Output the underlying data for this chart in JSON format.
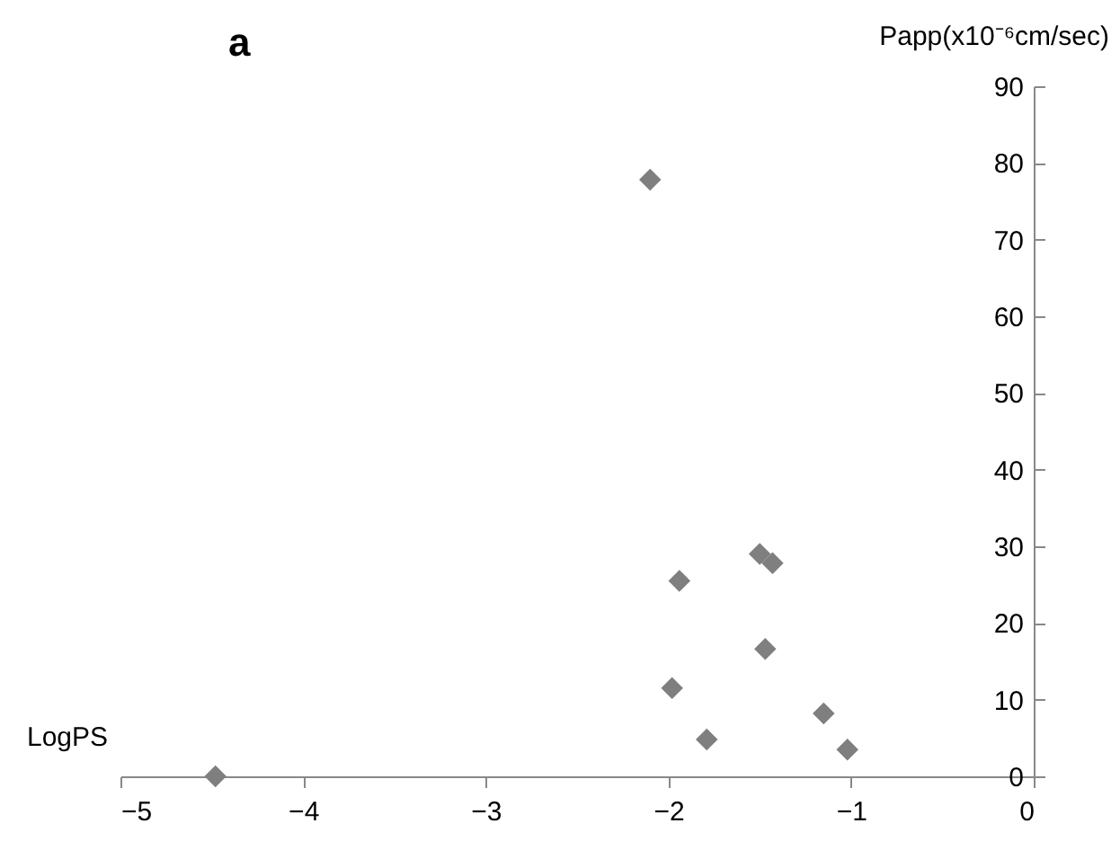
{
  "chart_data": {
    "type": "scatter",
    "title": "a",
    "xlabel": "LogPS",
    "ylabel": "Papp(x10⁻⁶cm/sec)",
    "x": [
      -4.48,
      -2.1,
      -1.94,
      -1.5,
      -1.43,
      -1.47,
      -1.98,
      -1.79,
      -1.15,
      -1.02
    ],
    "series": [
      {
        "color": "#7f7f7f",
        "values": [
          0,
          77.8,
          25.5,
          29,
          27.8,
          16.6,
          11.5,
          4.8,
          8.2,
          3.5
        ]
      }
    ],
    "xlim": [
      -5,
      0
    ],
    "xticks": [
      -5,
      -4,
      -3,
      -2,
      -1,
      0
    ],
    "ylim": [
      0,
      90
    ],
    "yticks": [
      0,
      10,
      20,
      30,
      40,
      50,
      60,
      70,
      80,
      90
    ],
    "marker": "diamond",
    "grid": false,
    "legend": false
  }
}
